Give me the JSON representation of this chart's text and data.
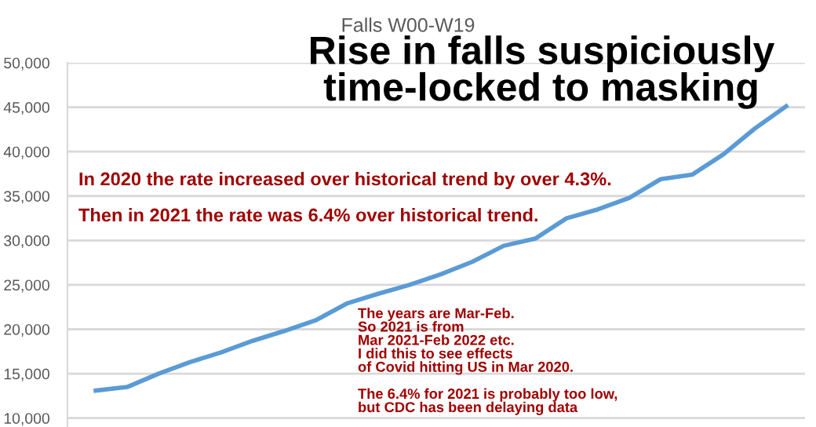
{
  "chart_data": {
    "type": "line",
    "title": "Falls W00-W19",
    "categories": [
      null,
      null,
      null,
      null,
      null,
      null,
      null,
      null,
      null,
      null,
      null,
      null,
      null,
      null,
      null,
      null,
      null,
      null,
      null,
      null,
      null,
      null,
      null
    ],
    "series": [
      {
        "color": "#5b9bd5",
        "values": [
          13100,
          13500,
          15000,
          16300,
          17400,
          18700,
          19800,
          21000,
          22900,
          24000,
          25000,
          26200,
          27600,
          29400,
          30200,
          32500,
          33500,
          34800,
          36900,
          37400,
          39700,
          42600,
          45100
        ]
      }
    ],
    "ylim": [
      9000,
      50000
    ],
    "yticks": [
      {
        "value": 10000,
        "label": "10,000"
      },
      {
        "value": 15000,
        "label": "15,000"
      },
      {
        "value": 20000,
        "label": "20,000"
      },
      {
        "value": 25000,
        "label": "25,000"
      },
      {
        "value": 30000,
        "label": "30,000"
      },
      {
        "value": 35000,
        "label": "35,000"
      },
      {
        "value": 40000,
        "label": "40,000"
      },
      {
        "value": 45000,
        "label": "45,000"
      },
      {
        "value": 50000,
        "label": "50,000"
      }
    ],
    "grid": "y",
    "tick_labels": "y",
    "legend": false,
    "marker": "none",
    "line_style": "solid",
    "annotations": [
      "Rise in falls suspiciously\ntime-locked to masking",
      "In 2020 the rate increased over historical trend by over 4.3%.",
      "Then in 2021 the rate was 6.4% over historical trend.",
      "The years are Mar-Feb.\nSo 2021 is from\nMar 2021-Feb 2022 etc.\nI did this to see effects\nof Covid hitting US in Mar 2020.\n\nThe 6.4% for 2021 is probably too low,\nbut CDC has been delaying data"
    ]
  }
}
